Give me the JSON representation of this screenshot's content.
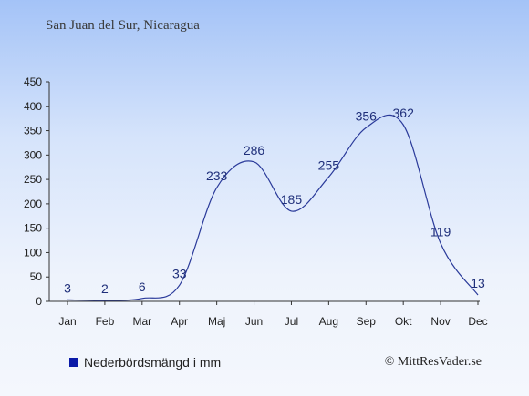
{
  "chart_data": {
    "type": "line",
    "title": "San Juan del Sur, Nicaragua",
    "categories": [
      "Jan",
      "Feb",
      "Mar",
      "Apr",
      "Maj",
      "Jun",
      "Jul",
      "Aug",
      "Sep",
      "Okt",
      "Nov",
      "Dec"
    ],
    "series": [
      {
        "name": "Nederbördsmängd i mm",
        "values": [
          3,
          2,
          6,
          33,
          233,
          286,
          185,
          255,
          356,
          362,
          119,
          13
        ]
      }
    ],
    "ylim": [
      0,
      450
    ],
    "yticks": [
      0,
      50,
      100,
      150,
      200,
      250,
      300,
      350,
      400,
      450
    ],
    "grid": false,
    "legend_position": "bottom-left"
  },
  "colors": {
    "line": "#2a3a9a",
    "legend_swatch": "#0a1aa8",
    "label": "#1f2f7a"
  },
  "credit": "© MittResVader.se"
}
